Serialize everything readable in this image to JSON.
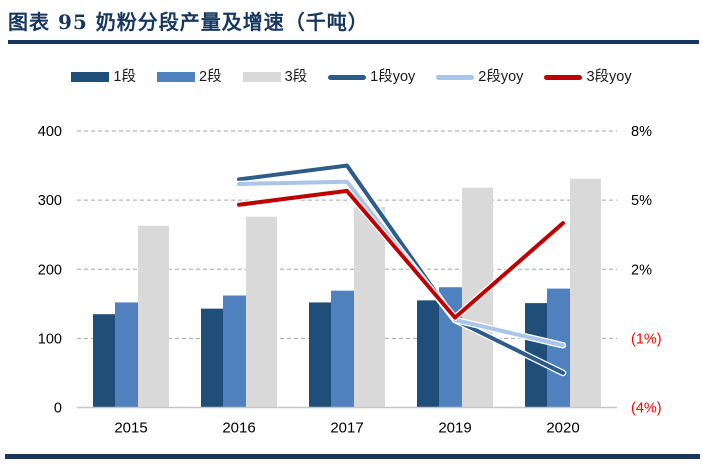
{
  "title": "图表 95  奶粉分段产量及增速（千吨）",
  "colors": {
    "accent_navy": "#17375E",
    "negative_tick_red": "#FF0000",
    "gridline_gray": "#A6A6A6",
    "axis_line_gray": "#C6C6C6",
    "tick_text": "#000000"
  },
  "chart_data": {
    "type": "bar",
    "subtype": "grouped bars with yoy growth lines (dual axis combo)",
    "title": "奶粉分段产量及增速（千吨）",
    "figure_label": "图表 95",
    "categories": [
      "2015",
      "2016",
      "2017",
      "2019",
      "2020"
    ],
    "bar_series": [
      {
        "name": "1段",
        "color": "#1F4E79",
        "values": [
          135,
          143,
          152,
          155,
          151
        ]
      },
      {
        "name": "2段",
        "color": "#4E81BD",
        "values": [
          152,
          162,
          169,
          174,
          172
        ]
      },
      {
        "name": "3段",
        "color": "#D9D9D9",
        "values": [
          263,
          276,
          290,
          318,
          331
        ]
      }
    ],
    "line_series": [
      {
        "name": "1段yoy",
        "color": "#2E5C8A",
        "values": [
          null,
          5.9,
          6.5,
          -0.2,
          -2.5
        ]
      },
      {
        "name": "2段yoy",
        "color": "#A9C5E8",
        "values": [
          null,
          5.7,
          5.8,
          -0.2,
          -1.3
        ]
      },
      {
        "name": "3段yoy",
        "color": "#C00000",
        "values": [
          null,
          4.8,
          5.4,
          -0.1,
          4.0
        ]
      }
    ],
    "left_axis": {
      "min": 0,
      "max": 400,
      "ticks": [
        0,
        100,
        200,
        300,
        400
      ],
      "labels": [
        "0",
        "100",
        "200",
        "300",
        "400"
      ]
    },
    "right_axis": {
      "min": -4,
      "max": 8,
      "ticks": [
        -4,
        -1,
        2,
        5,
        8
      ],
      "labels": [
        "(4%)",
        "(1%)",
        "2%",
        "5%",
        "8%"
      ]
    },
    "grid": "horizontal dashed gridlines",
    "legend_position": "top"
  }
}
